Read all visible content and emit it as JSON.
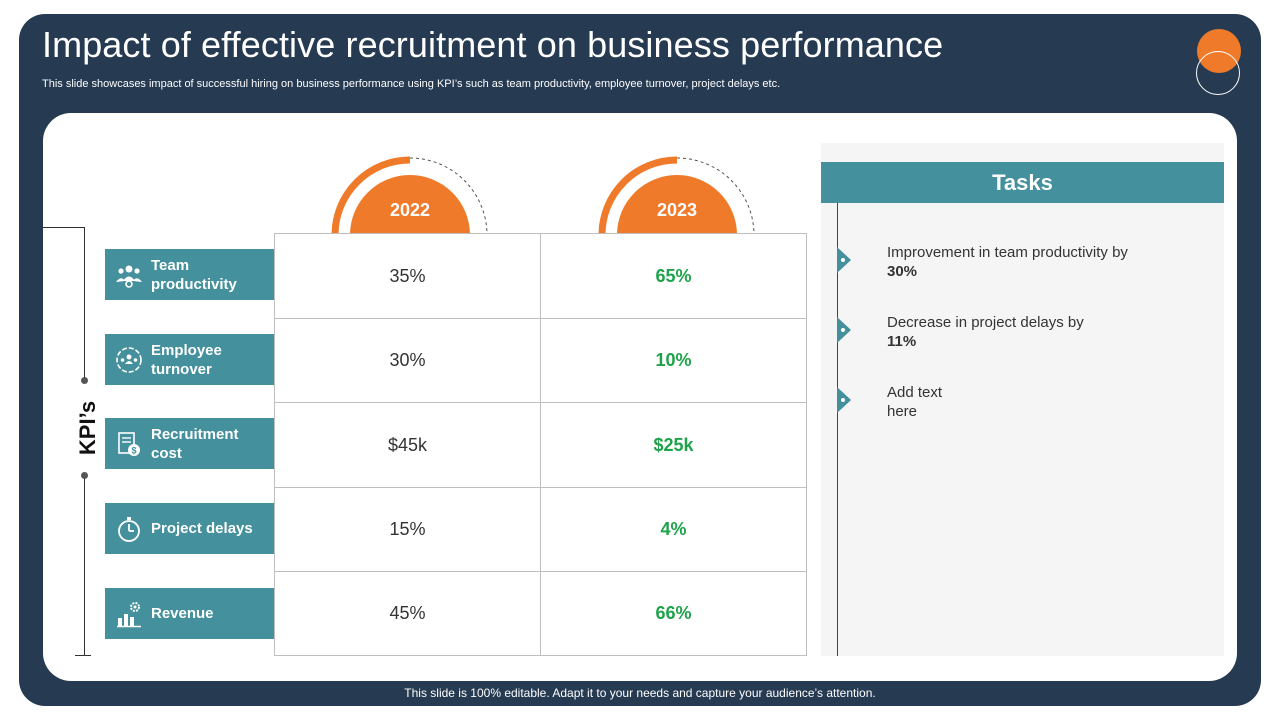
{
  "slide": {
    "title": "Impact of effective recruitment on business performance",
    "subtitle": "This slide showcases impact of successful hiring on business performance using KPI’s such as team productivity, employee turnover, project delays etc.",
    "footer": "This slide is 100% editable. Adapt it to your needs and capture your audience’s attention."
  },
  "kpi_axis_label": "KPI’s",
  "years": [
    "2022",
    "2023"
  ],
  "kpis": [
    {
      "label": "Team productivity",
      "icon": "team-icon",
      "v2022": "35%",
      "v2023": "65%"
    },
    {
      "label": "Employee turnover",
      "icon": "people-circle-icon",
      "v2022": "30%",
      "v2023": "10%"
    },
    {
      "label": "Recruitment cost",
      "icon": "document-money-icon",
      "v2022": "$45k",
      "v2023": "$25k"
    },
    {
      "label": "Project delays",
      "icon": "stopwatch-icon",
      "v2022": "15%",
      "v2023": "4%"
    },
    {
      "label": "Revenue",
      "icon": "chart-gear-icon",
      "v2022": "45%",
      "v2023": "66%"
    }
  ],
  "tasks": {
    "heading": "Tasks",
    "items": [
      {
        "text": "Improvement  in team productivity by",
        "bold": "30%"
      },
      {
        "text": "Decrease in project delays by",
        "bold": "11%"
      },
      {
        "text": "Add text here",
        "bold": ""
      }
    ]
  },
  "colors": {
    "frame": "#263a51",
    "accent_orange": "#ef7b2a",
    "teal": "#44909c",
    "improved_value": "#1fa34a"
  }
}
